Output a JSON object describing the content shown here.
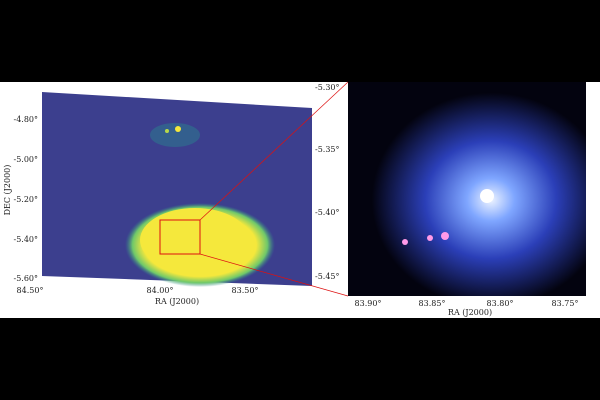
{
  "left_panel": {
    "x_label": "RA (J2000)",
    "y_label": "DEC (J2000)",
    "x_ticks": [
      "84.50°",
      "84.00°",
      "83.50°"
    ],
    "y_ticks": [
      "-4.80°",
      "-5.00°",
      "-5.20°",
      "-5.40°",
      "-5.60°"
    ],
    "y2_ticks": [
      "-5.30°",
      "-5.35°",
      "-5.40°",
      "-5.45°"
    ]
  },
  "right_panel": {
    "x_label": "RA (J2000)",
    "x_ticks": [
      "83.90°",
      "83.85°",
      "83.80°",
      "83.75°"
    ]
  }
}
